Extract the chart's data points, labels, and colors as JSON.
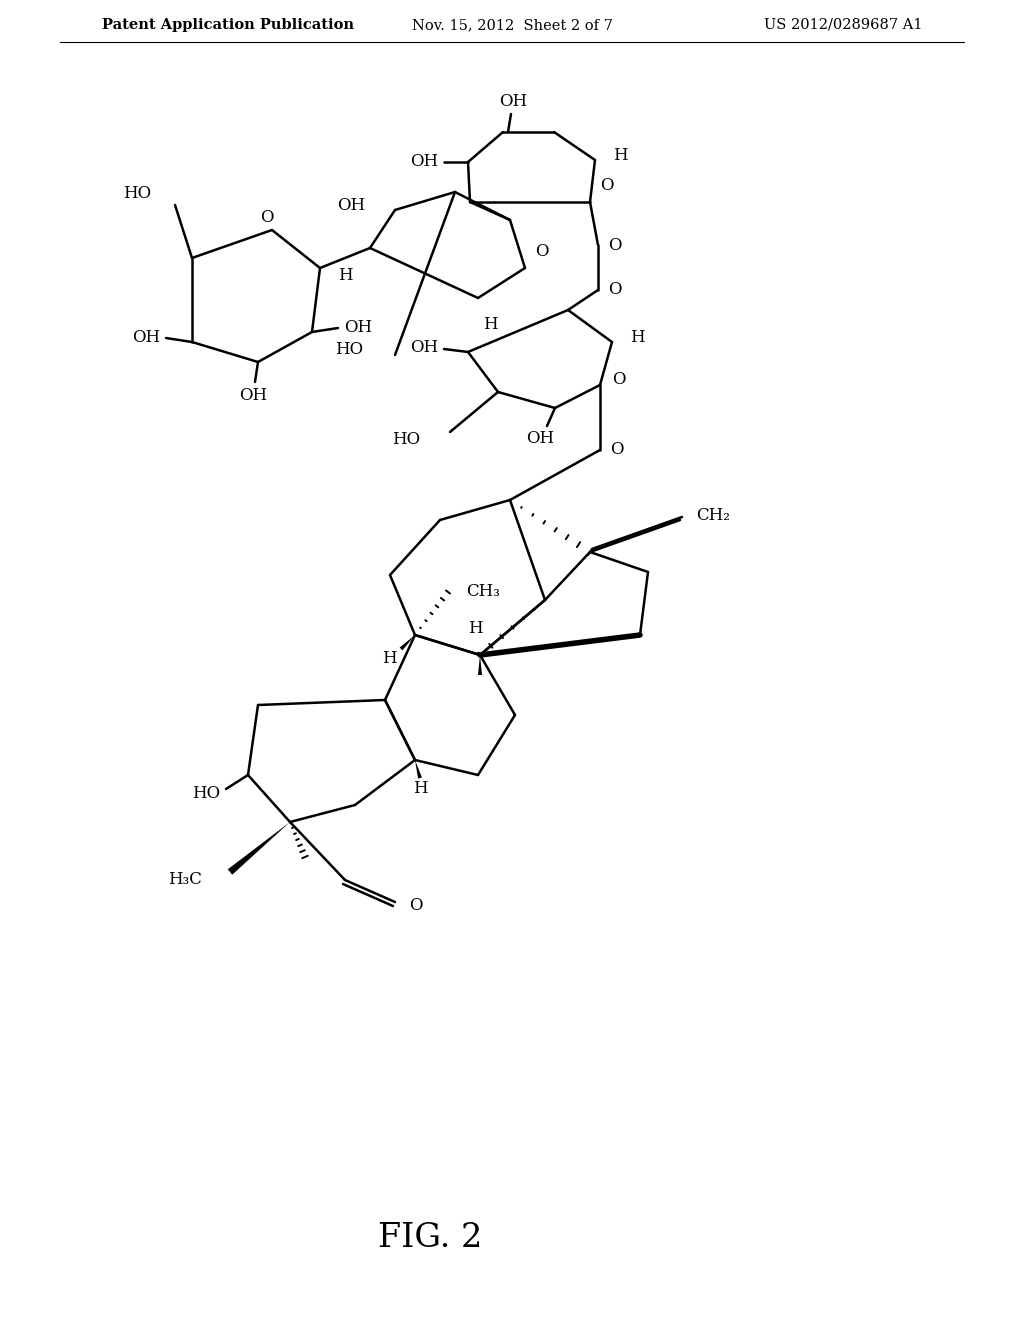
{
  "header_left": "Patent Application Publication",
  "header_mid": "Nov. 15, 2012  Sheet 2 of 7",
  "header_right": "US 2012/0289687 A1",
  "figure_label": "FIG. 2",
  "background": "#ffffff",
  "line_color": "#000000",
  "text_color": "#000000",
  "header_fontsize": 10.5,
  "label_fontsize": 22,
  "chem_fontsize": 12
}
